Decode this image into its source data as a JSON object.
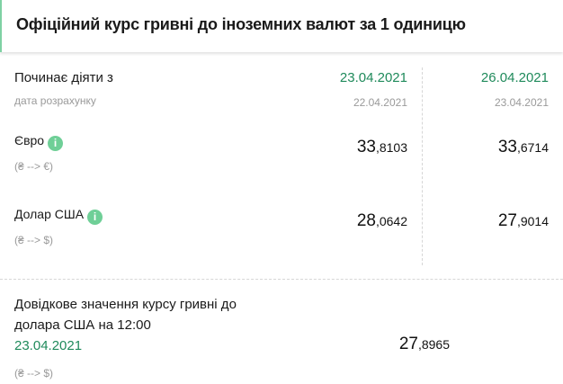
{
  "header": {
    "title": "Офіційний курс гривні до іноземних валют за 1 одиницю",
    "accent_color": "#7fd1a4"
  },
  "table": {
    "effective_label": "Починає діяти з",
    "calc_label": "дата розрахунку",
    "columns": [
      {
        "effective_date": "23.04.2021",
        "calc_date": "22.04.2021"
      },
      {
        "effective_date": "26.04.2021",
        "calc_date": "23.04.2021"
      }
    ],
    "currencies": [
      {
        "name": "Євро",
        "icon": "info-icon",
        "icon_glyph": "i",
        "direction": "(₴ --> €)",
        "rates": [
          {
            "int": "33",
            "frac": ",8103"
          },
          {
            "int": "33",
            "frac": ",6714"
          }
        ]
      },
      {
        "name": "Долар США",
        "icon": "info-icon",
        "icon_glyph": "i",
        "direction": "(₴ --> $)",
        "rates": [
          {
            "int": "28",
            "frac": ",0642"
          },
          {
            "int": "27",
            "frac": ",9014"
          }
        ]
      }
    ]
  },
  "reference": {
    "line1": "Довідкове значення курсу гривні до",
    "line2": "долара США на 12:00",
    "date": "23.04.2021",
    "direction": "(₴ --> $)",
    "rate": {
      "int": "27",
      "frac": ",8965"
    }
  },
  "colors": {
    "green_date": "#1f8a5b",
    "info_icon": "#6fcf97"
  }
}
